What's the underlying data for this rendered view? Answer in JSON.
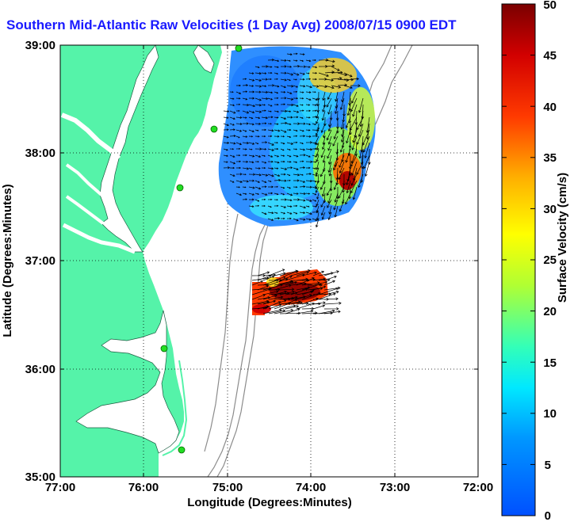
{
  "title": "Southern Mid-Atlantic Raw Velocities (1 Day Avg) 2008/07/15 0900 EDT",
  "map": {
    "x_axis_label": "Longitude (Degrees:Minutes)",
    "y_axis_label": "Latitude (Degrees:Minutes)",
    "x_ticks": [
      "77:00",
      "76:00",
      "75:00",
      "74:00",
      "73:00",
      "72:00"
    ],
    "y_ticks": [
      "39:00",
      "38:00",
      "37:00",
      "36:00",
      "35:00"
    ],
    "lon_range": [
      -77,
      -72
    ],
    "lat_range": [
      35,
      39
    ],
    "grid": true,
    "land_color": "#55f3a9",
    "bathymetry_color": "#8c8c8c",
    "vector_color": "#000000",
    "station_color": "#22dd22"
  },
  "colorbar": {
    "label": "Surface Velocity (cm/s)",
    "ticks": [
      "0",
      "5",
      "10",
      "15",
      "20",
      "25",
      "30",
      "35",
      "40",
      "45",
      "50"
    ],
    "range": [
      0,
      50
    ]
  },
  "chart_data": {
    "type": "heatmap",
    "title": "Southern Mid-Atlantic Raw Velocities (1 Day Avg) 2008/07/15 0900 EDT",
    "xlabel": "Longitude (Degrees:Minutes)",
    "ylabel": "Latitude (Degrees:Minutes)",
    "xlim": [
      -77,
      -72
    ],
    "ylim": [
      35,
      39
    ],
    "units": "cm/s",
    "value_range": [
      0,
      50
    ],
    "regions": [
      {
        "name": "",
        "lon_range": [
          -75.1,
          -73.3
        ],
        "lat_range": [
          37.4,
          38.98
        ],
        "samples": [
          {
            "lon": -74.6,
            "lat": 38.5,
            "speed": 5
          },
          {
            "lon": -74.8,
            "lat": 38.0,
            "speed": 6
          },
          {
            "lon": -74.2,
            "lat": 38.2,
            "speed": 10
          },
          {
            "lon": -74.0,
            "lat": 37.8,
            "speed": 18
          },
          {
            "lon": -73.7,
            "lat": 38.5,
            "speed": 30
          },
          {
            "lon": -73.5,
            "lat": 37.8,
            "speed": 45
          }
        ]
      },
      {
        "name": "",
        "lon_range": [
          -74.6,
          -73.9
        ],
        "lat_range": [
          36.45,
          36.8
        ],
        "samples": [
          {
            "lon": -74.3,
            "lat": 36.6,
            "speed": 40
          },
          {
            "lon": -74.5,
            "lat": 36.55,
            "speed": 42
          },
          {
            "lon": -74.4,
            "lat": 36.75,
            "speed": 30
          }
        ]
      }
    ],
    "stations": [
      {
        "lon": -74.87,
        "lat": 38.97
      },
      {
        "lon": -75.16,
        "lat": 38.22
      },
      {
        "lon": -75.52,
        "lat": 37.68
      },
      {
        "lon": -75.72,
        "lat": 36.18
      },
      {
        "lon": -75.51,
        "lat": 35.27
      }
    ]
  }
}
